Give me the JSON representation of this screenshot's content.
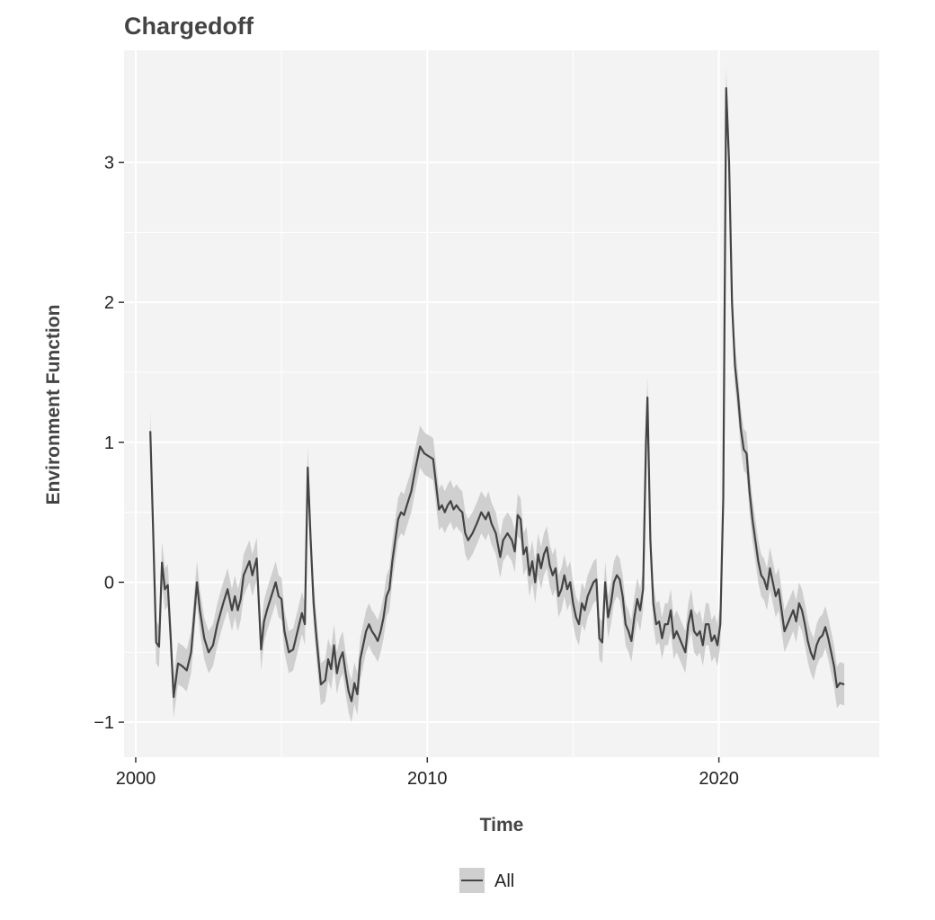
{
  "chart_data": {
    "type": "line",
    "title": "Chargedoff",
    "xlabel": "Time",
    "ylabel": "Environment Function",
    "xlim": [
      1999.6,
      2025.5
    ],
    "ylim": [
      -1.25,
      3.8
    ],
    "x_ticks": [
      2000,
      2010,
      2020
    ],
    "x_tick_labels": [
      "2000",
      "2010",
      "2020"
    ],
    "y_ticks": [
      -1,
      0,
      1,
      2,
      3
    ],
    "y_tick_labels": [
      "−1",
      "0",
      "1",
      "2",
      "3"
    ],
    "grid": true,
    "legend_position": "bottom",
    "colors": {
      "line": "#444444",
      "band": "#cfcfcf",
      "panel": "#f3f3f3",
      "grid": "#ffffff"
    },
    "series": [
      {
        "name": "All",
        "ci_halfwidth": 0.15,
        "points": [
          [
            2000.5,
            1.08
          ],
          [
            2000.6,
            0.35
          ],
          [
            2000.7,
            -0.43
          ],
          [
            2000.8,
            -0.46
          ],
          [
            2000.9,
            0.14
          ],
          [
            2001.0,
            -0.05
          ],
          [
            2001.1,
            -0.02
          ],
          [
            2001.2,
            -0.4
          ],
          [
            2001.3,
            -0.82
          ],
          [
            2001.45,
            -0.58
          ],
          [
            2001.6,
            -0.6
          ],
          [
            2001.75,
            -0.63
          ],
          [
            2001.9,
            -0.5
          ],
          [
            2002.0,
            -0.25
          ],
          [
            2002.1,
            0.0
          ],
          [
            2002.2,
            -0.2
          ],
          [
            2002.35,
            -0.4
          ],
          [
            2002.5,
            -0.5
          ],
          [
            2002.65,
            -0.45
          ],
          [
            2002.8,
            -0.3
          ],
          [
            2003.0,
            -0.15
          ],
          [
            2003.15,
            -0.05
          ],
          [
            2003.3,
            -0.2
          ],
          [
            2003.4,
            -0.1
          ],
          [
            2003.5,
            -0.2
          ],
          [
            2003.6,
            -0.12
          ],
          [
            2003.7,
            0.05
          ],
          [
            2003.8,
            0.1
          ],
          [
            2003.9,
            0.15
          ],
          [
            2004.0,
            0.05
          ],
          [
            2004.15,
            0.17
          ],
          [
            2004.3,
            -0.48
          ],
          [
            2004.4,
            -0.28
          ],
          [
            2004.5,
            -0.2
          ],
          [
            2004.65,
            -0.1
          ],
          [
            2004.8,
            0.0
          ],
          [
            2004.9,
            -0.1
          ],
          [
            2005.0,
            -0.12
          ],
          [
            2005.1,
            -0.35
          ],
          [
            2005.25,
            -0.5
          ],
          [
            2005.4,
            -0.48
          ],
          [
            2005.55,
            -0.35
          ],
          [
            2005.7,
            -0.22
          ],
          [
            2005.8,
            -0.3
          ],
          [
            2005.9,
            0.82
          ],
          [
            2006.0,
            0.3
          ],
          [
            2006.1,
            -0.15
          ],
          [
            2006.2,
            -0.4
          ],
          [
            2006.35,
            -0.73
          ],
          [
            2006.5,
            -0.7
          ],
          [
            2006.6,
            -0.55
          ],
          [
            2006.7,
            -0.62
          ],
          [
            2006.8,
            -0.45
          ],
          [
            2006.9,
            -0.65
          ],
          [
            2007.0,
            -0.55
          ],
          [
            2007.1,
            -0.5
          ],
          [
            2007.2,
            -0.65
          ],
          [
            2007.3,
            -0.78
          ],
          [
            2007.4,
            -0.85
          ],
          [
            2007.5,
            -0.72
          ],
          [
            2007.6,
            -0.8
          ],
          [
            2007.7,
            -0.55
          ],
          [
            2007.8,
            -0.45
          ],
          [
            2007.9,
            -0.35
          ],
          [
            2008.0,
            -0.3
          ],
          [
            2008.1,
            -0.35
          ],
          [
            2008.2,
            -0.38
          ],
          [
            2008.3,
            -0.42
          ],
          [
            2008.4,
            -0.35
          ],
          [
            2008.5,
            -0.25
          ],
          [
            2008.6,
            -0.1
          ],
          [
            2008.7,
            -0.05
          ],
          [
            2008.8,
            0.15
          ],
          [
            2008.9,
            0.3
          ],
          [
            2009.0,
            0.45
          ],
          [
            2009.1,
            0.5
          ],
          [
            2009.2,
            0.48
          ],
          [
            2009.3,
            0.55
          ],
          [
            2009.45,
            0.65
          ],
          [
            2009.6,
            0.82
          ],
          [
            2009.75,
            0.97
          ],
          [
            2009.9,
            0.92
          ],
          [
            2010.05,
            0.9
          ],
          [
            2010.2,
            0.88
          ],
          [
            2010.3,
            0.7
          ],
          [
            2010.4,
            0.52
          ],
          [
            2010.5,
            0.55
          ],
          [
            2010.6,
            0.5
          ],
          [
            2010.7,
            0.55
          ],
          [
            2010.8,
            0.58
          ],
          [
            2010.9,
            0.52
          ],
          [
            2011.0,
            0.55
          ],
          [
            2011.1,
            0.52
          ],
          [
            2011.2,
            0.5
          ],
          [
            2011.3,
            0.35
          ],
          [
            2011.4,
            0.3
          ],
          [
            2011.55,
            0.35
          ],
          [
            2011.7,
            0.42
          ],
          [
            2011.85,
            0.5
          ],
          [
            2012.0,
            0.45
          ],
          [
            2012.1,
            0.5
          ],
          [
            2012.2,
            0.42
          ],
          [
            2012.35,
            0.35
          ],
          [
            2012.5,
            0.18
          ],
          [
            2012.6,
            0.3
          ],
          [
            2012.75,
            0.35
          ],
          [
            2012.9,
            0.3
          ],
          [
            2013.0,
            0.22
          ],
          [
            2013.1,
            0.48
          ],
          [
            2013.2,
            0.45
          ],
          [
            2013.3,
            0.2
          ],
          [
            2013.4,
            0.25
          ],
          [
            2013.5,
            0.05
          ],
          [
            2013.6,
            0.15
          ],
          [
            2013.7,
            0.0
          ],
          [
            2013.8,
            0.2
          ],
          [
            2013.9,
            0.1
          ],
          [
            2014.0,
            0.2
          ],
          [
            2014.1,
            0.25
          ],
          [
            2014.2,
            0.12
          ],
          [
            2014.3,
            0.05
          ],
          [
            2014.4,
            0.1
          ],
          [
            2014.5,
            -0.1
          ],
          [
            2014.6,
            -0.05
          ],
          [
            2014.7,
            0.05
          ],
          [
            2014.8,
            -0.05
          ],
          [
            2014.9,
            0.0
          ],
          [
            2015.0,
            -0.15
          ],
          [
            2015.1,
            -0.25
          ],
          [
            2015.2,
            -0.3
          ],
          [
            2015.3,
            -0.15
          ],
          [
            2015.4,
            -0.2
          ],
          [
            2015.5,
            -0.1
          ],
          [
            2015.6,
            -0.05
          ],
          [
            2015.7,
            0.0
          ],
          [
            2015.8,
            0.02
          ],
          [
            2015.9,
            -0.4
          ],
          [
            2016.0,
            -0.43
          ],
          [
            2016.1,
            0.0
          ],
          [
            2016.2,
            -0.25
          ],
          [
            2016.3,
            -0.15
          ],
          [
            2016.4,
            0.0
          ],
          [
            2016.5,
            0.05
          ],
          [
            2016.6,
            0.02
          ],
          [
            2016.7,
            -0.1
          ],
          [
            2016.8,
            -0.3
          ],
          [
            2016.9,
            -0.35
          ],
          [
            2017.0,
            -0.42
          ],
          [
            2017.1,
            -0.25
          ],
          [
            2017.2,
            -0.12
          ],
          [
            2017.3,
            -0.2
          ],
          [
            2017.4,
            -0.05
          ],
          [
            2017.5,
            1.0
          ],
          [
            2017.55,
            1.32
          ],
          [
            2017.65,
            0.3
          ],
          [
            2017.75,
            -0.15
          ],
          [
            2017.85,
            -0.3
          ],
          [
            2017.95,
            -0.28
          ],
          [
            2018.05,
            -0.4
          ],
          [
            2018.15,
            -0.3
          ],
          [
            2018.25,
            -0.3
          ],
          [
            2018.35,
            -0.2
          ],
          [
            2018.45,
            -0.4
          ],
          [
            2018.55,
            -0.35
          ],
          [
            2018.65,
            -0.4
          ],
          [
            2018.75,
            -0.45
          ],
          [
            2018.85,
            -0.5
          ],
          [
            2018.95,
            -0.3
          ],
          [
            2019.05,
            -0.2
          ],
          [
            2019.15,
            -0.35
          ],
          [
            2019.25,
            -0.38
          ],
          [
            2019.35,
            -0.35
          ],
          [
            2019.45,
            -0.45
          ],
          [
            2019.55,
            -0.3
          ],
          [
            2019.65,
            -0.3
          ],
          [
            2019.75,
            -0.42
          ],
          [
            2019.85,
            -0.38
          ],
          [
            2019.95,
            -0.45
          ],
          [
            2020.05,
            -0.3
          ],
          [
            2020.15,
            0.6
          ],
          [
            2020.25,
            3.53
          ],
          [
            2020.35,
            3.0
          ],
          [
            2020.45,
            2.0
          ],
          [
            2020.55,
            1.55
          ],
          [
            2020.65,
            1.35
          ],
          [
            2020.75,
            1.1
          ],
          [
            2020.85,
            0.95
          ],
          [
            2020.95,
            0.92
          ],
          [
            2021.05,
            0.65
          ],
          [
            2021.15,
            0.45
          ],
          [
            2021.25,
            0.3
          ],
          [
            2021.35,
            0.15
          ],
          [
            2021.45,
            0.05
          ],
          [
            2021.55,
            0.02
          ],
          [
            2021.65,
            -0.05
          ],
          [
            2021.75,
            0.1
          ],
          [
            2021.85,
            0.0
          ],
          [
            2021.95,
            -0.1
          ],
          [
            2022.05,
            -0.05
          ],
          [
            2022.15,
            -0.2
          ],
          [
            2022.25,
            -0.35
          ],
          [
            2022.35,
            -0.3
          ],
          [
            2022.45,
            -0.25
          ],
          [
            2022.55,
            -0.2
          ],
          [
            2022.65,
            -0.28
          ],
          [
            2022.75,
            -0.15
          ],
          [
            2022.85,
            -0.2
          ],
          [
            2022.95,
            -0.3
          ],
          [
            2023.05,
            -0.42
          ],
          [
            2023.15,
            -0.5
          ],
          [
            2023.25,
            -0.55
          ],
          [
            2023.35,
            -0.45
          ],
          [
            2023.45,
            -0.4
          ],
          [
            2023.55,
            -0.38
          ],
          [
            2023.65,
            -0.32
          ],
          [
            2023.75,
            -0.4
          ],
          [
            2023.85,
            -0.5
          ],
          [
            2023.95,
            -0.6
          ],
          [
            2024.05,
            -0.75
          ],
          [
            2024.15,
            -0.72
          ],
          [
            2024.3,
            -0.73
          ]
        ]
      }
    ]
  }
}
